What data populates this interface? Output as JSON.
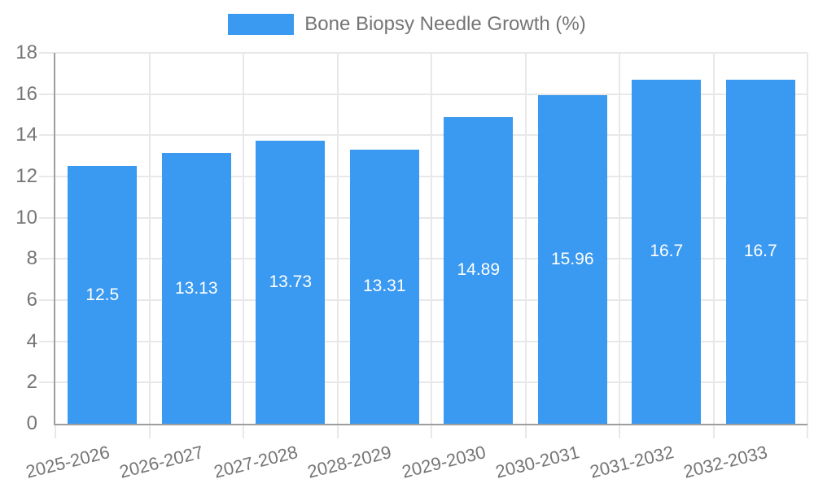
{
  "legend": {
    "label": "Bone Biopsy Needle Growth (%)"
  },
  "chart_data": {
    "type": "bar",
    "title": "",
    "series_name": "Bone Biopsy Needle Growth (%)",
    "categories": [
      "2025-2026",
      "2026-2027",
      "2027-2028",
      "2028-2029",
      "2029-2030",
      "2030-2031",
      "2031-2032",
      "2032-2033"
    ],
    "values": [
      12.5,
      13.13,
      13.73,
      13.31,
      14.89,
      15.96,
      16.7,
      16.7
    ],
    "value_labels": [
      "12.5",
      "13.13",
      "13.73",
      "13.31",
      "14.89",
      "15.96",
      "16.7",
      "16.7"
    ],
    "ylabel": "",
    "xlabel": "",
    "ylim": [
      0,
      18
    ],
    "ytick_step": 2,
    "yticks": [
      0,
      2,
      4,
      6,
      8,
      10,
      12,
      14,
      16,
      18
    ],
    "grid": true,
    "legend_position": "top",
    "bar_color": "#3a99f0",
    "value_label_color": "#ffffff",
    "grid_color": "#e8e8e8",
    "axis_color": "#9e9e9e",
    "tick_text_color": "#757575",
    "background_color": "#ffffff"
  }
}
